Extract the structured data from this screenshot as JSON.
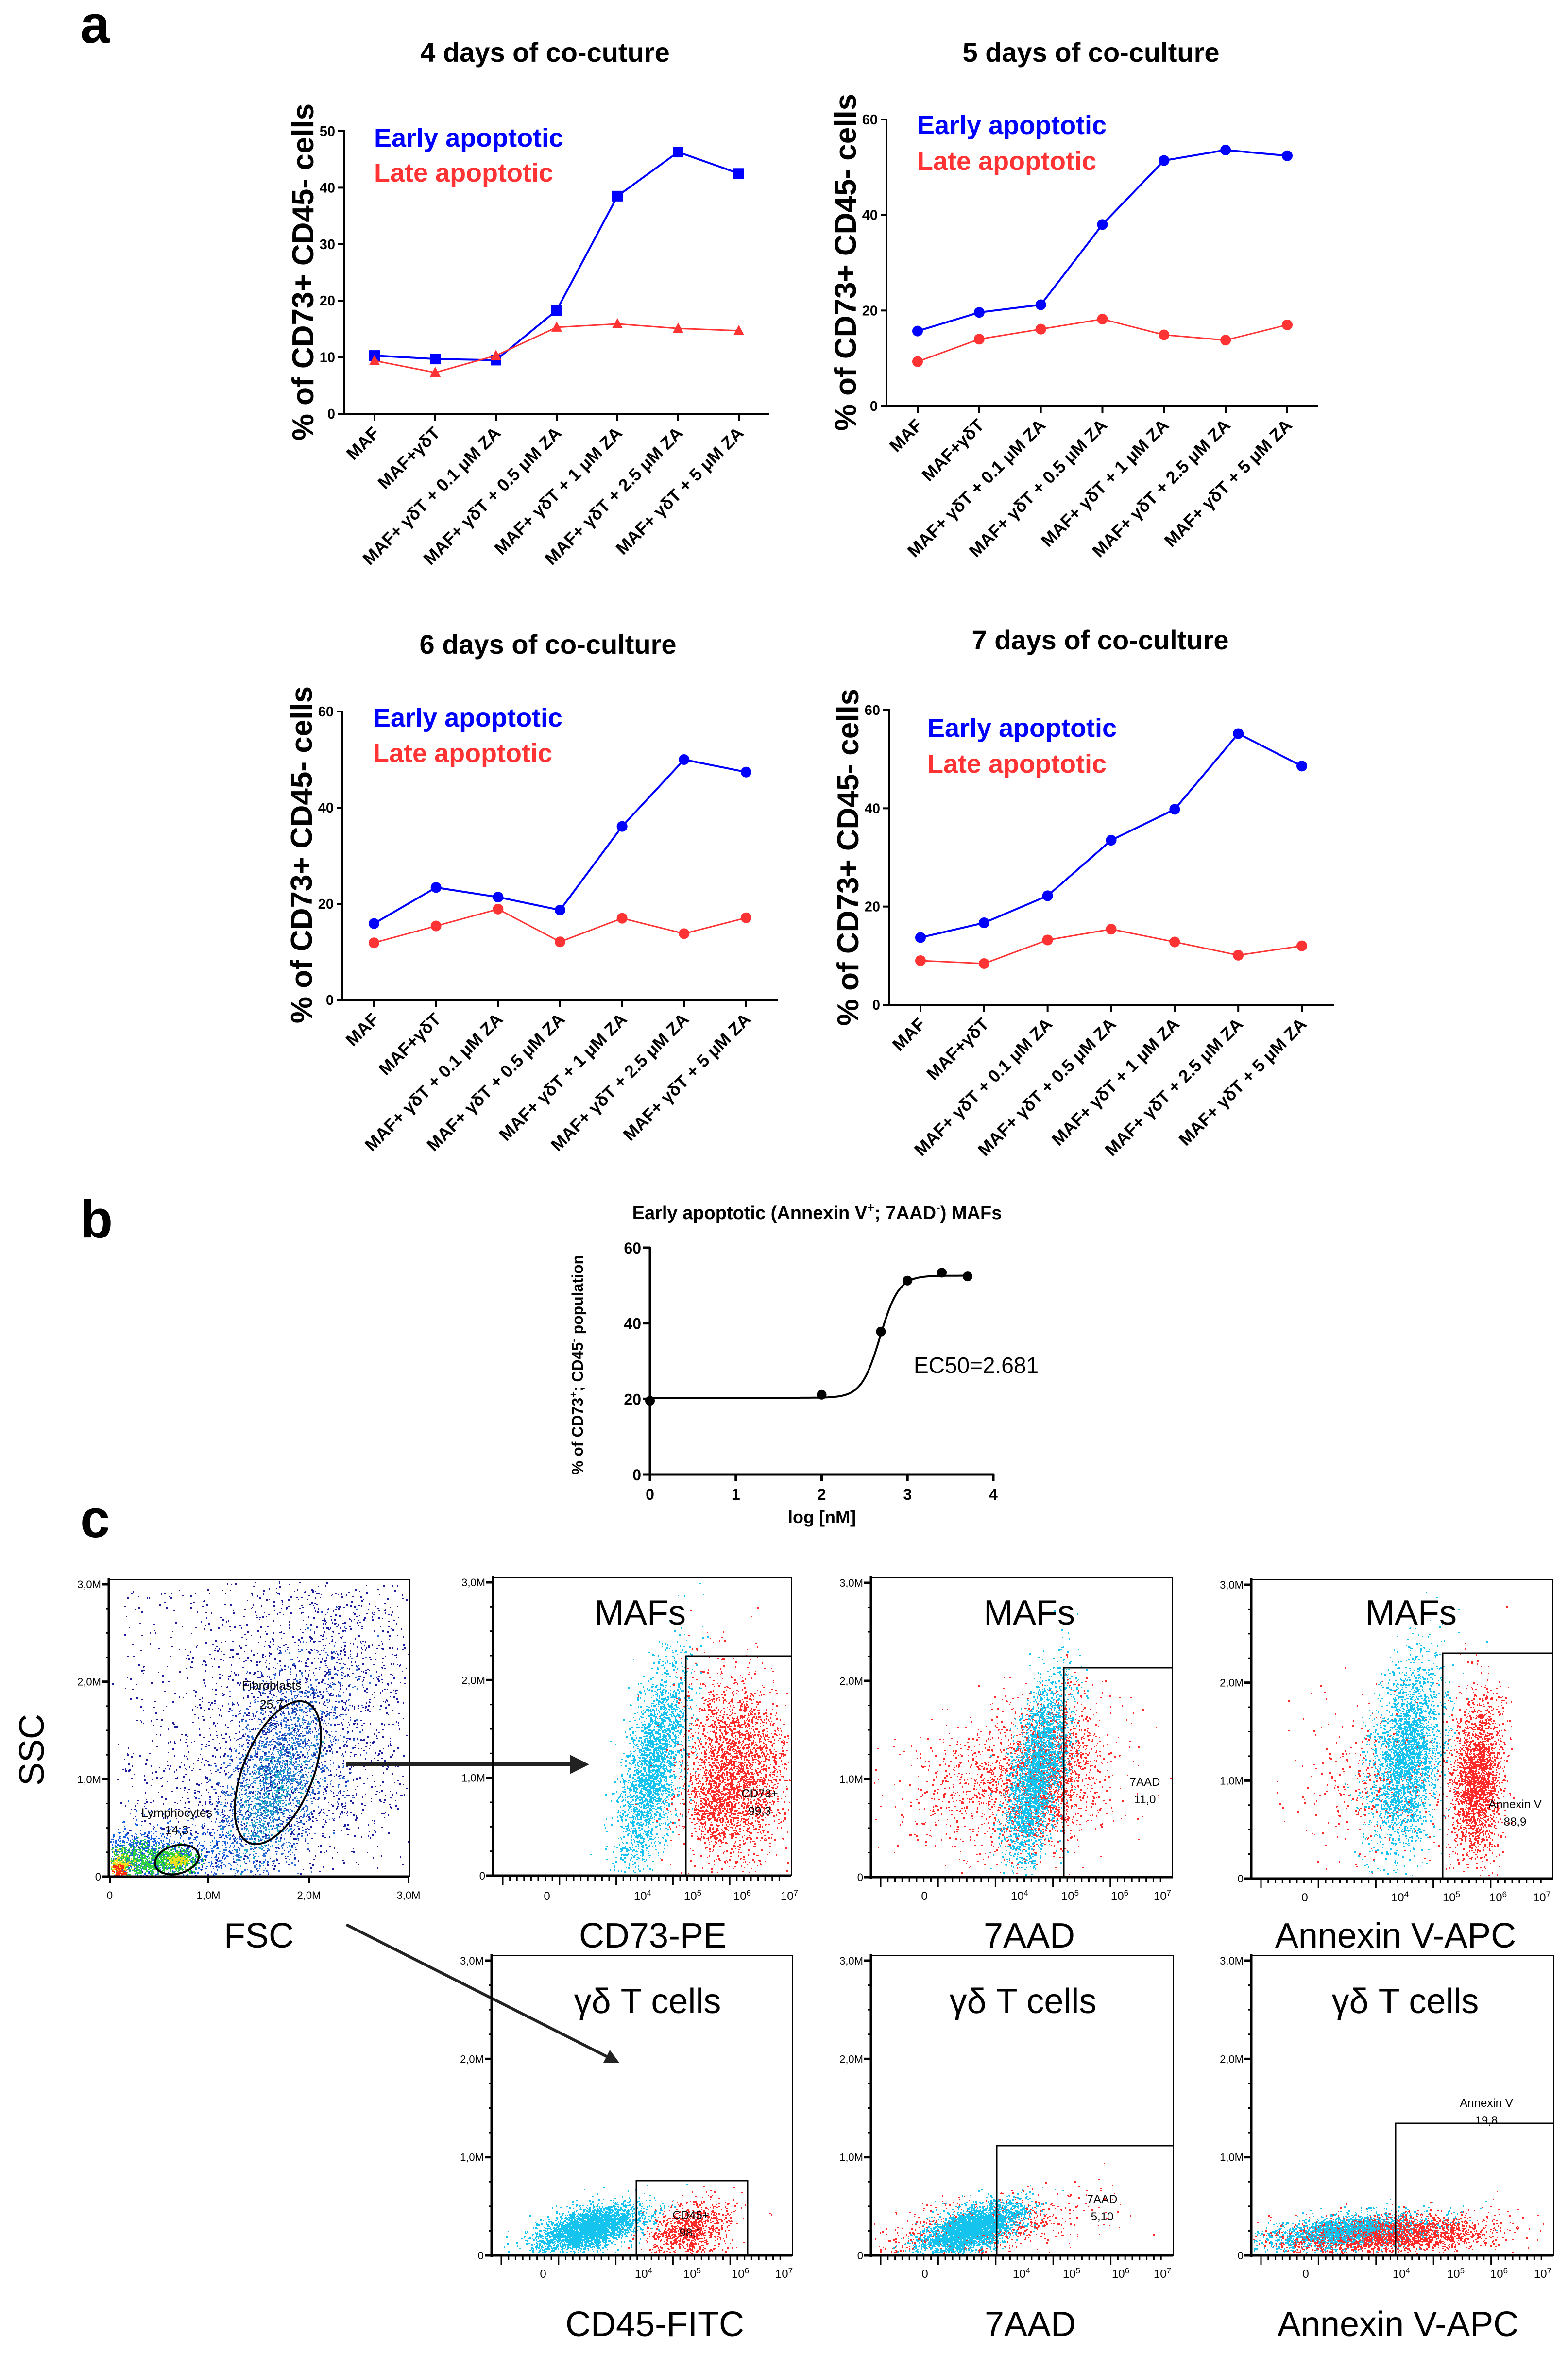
{
  "panel_labels": {
    "a": "a",
    "b": "b",
    "c": "c"
  },
  "colors": {
    "early": "#0000ff",
    "late": "#ff3333",
    "cyan_events": "#14c3ee",
    "red_events": "#ff2a2a",
    "dark_events": "#1c1c9c"
  },
  "chart_data": [
    {
      "type": "line",
      "title": "4 days of co-cuture",
      "ylabel": "% of CD73+ CD45- cells",
      "xlabel": "",
      "ylim": [
        0,
        50
      ],
      "yticks": [
        "0",
        "10",
        "20",
        "30",
        "40",
        "50"
      ],
      "categories": [
        "MAF",
        "MAF+γδT",
        "MAF+ γδT + 0.1 μM ZA",
        "MAF+ γδT + 0.5 μM ZA",
        "MAF+ γδT + 1 μM ZA",
        "MAF+ γδT + 2.5 μM ZA",
        "MAF+ γδT + 5 μM ZA"
      ],
      "series": [
        {
          "name": "Early apoptotic",
          "marker": "square",
          "values": [
            10.3,
            9.7,
            9.5,
            18.3,
            38.5,
            46.3,
            42.5
          ]
        },
        {
          "name": "Late apoptotic",
          "marker": "triangle",
          "values": [
            9.4,
            7.3,
            10.3,
            15.3,
            15.9,
            15.1,
            14.7
          ]
        }
      ],
      "legend": "top-left"
    },
    {
      "type": "line",
      "title": "5 days of co-culture",
      "ylabel": "% of CD73+ CD45- cells",
      "xlabel": "",
      "ylim": [
        0,
        60
      ],
      "yticks": [
        "0",
        "20",
        "40",
        "60"
      ],
      "categories": [
        "MAF",
        "MAF+γδT",
        "MAF+ γδT + 0.1 μM ZA",
        "MAF+ γδT + 0.5 μM ZA",
        "MAF+ γδT + 1 μM ZA",
        "MAF+ γδT + 2.5 μM ZA",
        "MAF+ γδT + 5 μM ZA"
      ],
      "series": [
        {
          "name": "Early apoptotic",
          "marker": "circle",
          "values": [
            15.7,
            19.6,
            21.2,
            38.0,
            51.4,
            53.6,
            52.4
          ]
        },
        {
          "name": "Late apoptotic",
          "marker": "circle",
          "values": [
            9.3,
            14.0,
            16.1,
            18.2,
            14.9,
            13.8,
            17.0
          ]
        }
      ],
      "legend": "top-left"
    },
    {
      "type": "line",
      "title": "6 days of co-culture",
      "ylabel": "% of CD73+ CD45- cells",
      "xlabel": "",
      "ylim": [
        0,
        60
      ],
      "yticks": [
        "0",
        "20",
        "40",
        "60"
      ],
      "categories": [
        "MAF",
        "MAF+γδT",
        "MAF+ γδT + 0.1 μM ZA",
        "MAF+ γδT + 0.5 μM ZA",
        "MAF+ γδT + 1 μM ZA",
        "MAF+ γδT + 2.5 μM ZA",
        "MAF+ γδT + 5 μM ZA"
      ],
      "series": [
        {
          "name": "Early apoptotic",
          "marker": "circle",
          "values": [
            15.9,
            23.4,
            21.4,
            18.7,
            36.1,
            50.0,
            47.4
          ]
        },
        {
          "name": "Late apoptotic",
          "marker": "circle",
          "values": [
            11.9,
            15.4,
            18.9,
            12.1,
            17.0,
            13.8,
            17.1
          ]
        }
      ],
      "legend": "top-left"
    },
    {
      "type": "line",
      "title": "7 days of co-culture",
      "ylabel": "% of CD73+ CD45- cells",
      "xlabel": "",
      "ylim": [
        0,
        60
      ],
      "yticks": [
        "0",
        "20",
        "40",
        "60"
      ],
      "categories": [
        "MAF",
        "MAF+γδT",
        "MAF+ γδT + 0.1 μM ZA",
        "MAF+ γδT + 0.5 μM ZA",
        "MAF+ γδT + 1 μM ZA",
        "MAF+ γδT + 2.5 μM ZA",
        "MAF+ γδT + 5 μM ZA"
      ],
      "series": [
        {
          "name": "Early apoptotic",
          "marker": "circle",
          "values": [
            13.7,
            16.7,
            22.2,
            33.5,
            39.8,
            55.2,
            48.6
          ]
        },
        {
          "name": "Late apoptotic",
          "marker": "circle",
          "values": [
            9.0,
            8.4,
            13.2,
            15.4,
            12.8,
            10.1,
            12.0
          ]
        }
      ],
      "legend": "top-left"
    },
    {
      "type": "scatter",
      "title_parts": [
        "Early apoptotic (Annexin V",
        "+",
        "; 7AAD",
        "-",
        ") MAFs"
      ],
      "ylabel_parts": [
        "% of  CD73",
        "+",
        "; CD45",
        "-",
        " population"
      ],
      "xlabel": "log [nM]",
      "xlim": [
        0,
        4
      ],
      "ylim": [
        0,
        60
      ],
      "xticks": [
        "0",
        "1",
        "2",
        "3",
        "4"
      ],
      "yticks": [
        "0",
        "20",
        "40",
        "60"
      ],
      "points": [
        [
          0,
          19.5
        ],
        [
          2,
          21.1
        ],
        [
          2.69,
          37.8
        ],
        [
          3.0,
          51.3
        ],
        [
          3.4,
          53.4
        ],
        [
          3.7,
          52.4
        ]
      ],
      "fit": {
        "model": "sigmoidal dose-response",
        "bottom": 20.3,
        "top": 52.6,
        "log_ec50": 2.681,
        "hill": 4
      },
      "annotation": "EC50=2.681"
    }
  ],
  "panel_c": {
    "gating": {
      "ylabel": "SSC",
      "xlabel": "FSC",
      "y_ticks": [
        "0",
        "1,0M",
        "2,0M",
        "3,0M"
      ],
      "x_ticks": [
        "0",
        "1,0M",
        "2,0M",
        "3,0M"
      ],
      "gates": [
        {
          "label": "Fibroblasts",
          "value": "25,7"
        },
        {
          "label": "Lymphocytes",
          "value": "14,3"
        }
      ]
    },
    "plots": [
      {
        "title": "MAFs",
        "xlabel": "CD73-PE",
        "gate_label": "CD73+",
        "gate_value": "99,3"
      },
      {
        "title": "MAFs",
        "xlabel": "7AAD",
        "gate_label": "7AAD",
        "gate_value": "11,0"
      },
      {
        "title": "MAFs",
        "xlabel": "Annexin V-APC",
        "gate_label": "Annexin V",
        "gate_value": "88,9"
      },
      {
        "title": "γδ T cells",
        "xlabel": "CD45-FITC",
        "gate_label": "CD45+",
        "gate_value": "98,1"
      },
      {
        "title": "γδ T cells",
        "xlabel": "7AAD",
        "gate_label": "7AAD",
        "gate_value": "5,10"
      },
      {
        "title": "γδ T cells",
        "xlabel": "Annexin V-APC",
        "gate_label": "Annexin V",
        "gate_value": "19,8"
      }
    ],
    "y_ticks": [
      "0",
      "1,0M",
      "2,0M",
      "3,0M"
    ],
    "x_ticks": [
      {
        "base": "0",
        "exp": ""
      },
      {
        "base": "10",
        "exp": "4"
      },
      {
        "base": "10",
        "exp": "5"
      },
      {
        "base": "10",
        "exp": "6"
      },
      {
        "base": "10",
        "exp": "7"
      }
    ]
  }
}
